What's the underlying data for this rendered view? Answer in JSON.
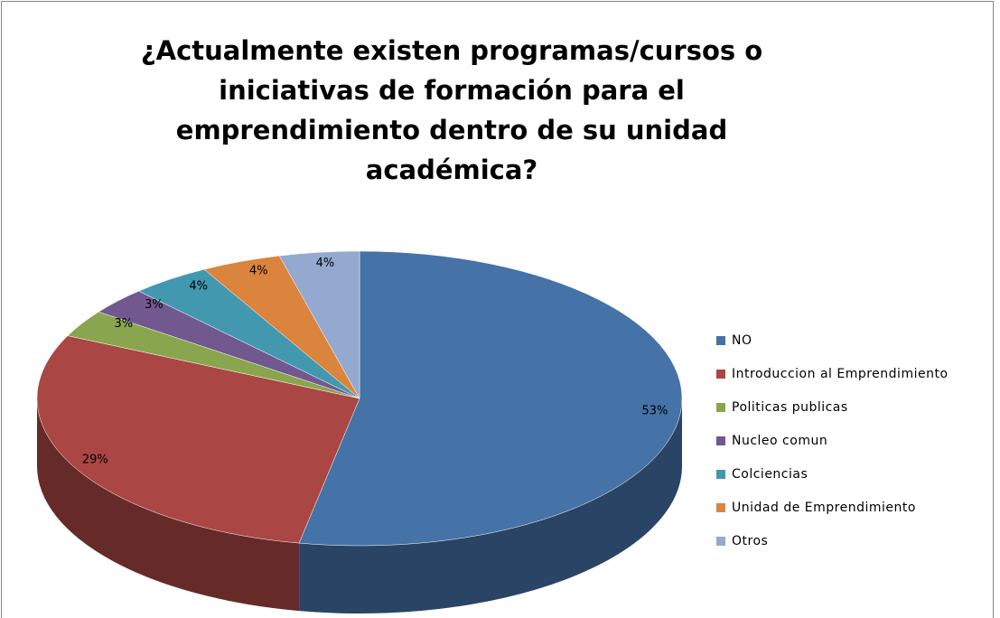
{
  "chart_data": {
    "type": "pie3d",
    "title": "¿Actualmente existen programas/cursos o iniciativas de formación para el emprendimiento dentro de su unidad académica?",
    "categories": [
      "NO",
      "Introduccion al Emprendimiento",
      "Politicas publicas",
      "Nucleo comun",
      "Colciencias",
      "Unidad de Emprendimiento",
      "Otros"
    ],
    "values": [
      53,
      29,
      3,
      3,
      4,
      4,
      4
    ],
    "value_labels": [
      "53%",
      "29%",
      "3%",
      "3%",
      "4%",
      "4%",
      "4%"
    ],
    "colors": [
      "#4572a7",
      "#aa4643",
      "#89a54e",
      "#71588f",
      "#4198af",
      "#db843d",
      "#93a9cf"
    ],
    "legend": "right"
  }
}
